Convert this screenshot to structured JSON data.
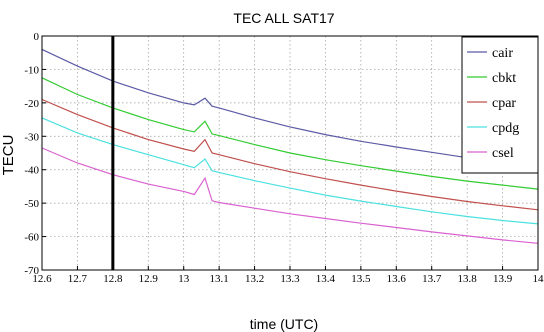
{
  "chart_data": {
    "type": "line",
    "title": "TEC ALL SAT17",
    "xlabel": "time (UTC)",
    "ylabel": "TECU",
    "xlim": [
      12.6,
      14
    ],
    "ylim": [
      -70,
      0
    ],
    "xticks": [
      "12.6",
      "12.7",
      "12.8",
      "12.9",
      "13",
      "13.1",
      "13.2",
      "13.3",
      "13.4",
      "13.5",
      "13.6",
      "13.7",
      "13.8",
      "13.9",
      "14"
    ],
    "yticks": [
      "0",
      "-10",
      "-20",
      "-30",
      "-40",
      "-50",
      "-60",
      "-70"
    ],
    "grid": true,
    "legend_position": "top-right",
    "vertical_marker_x": 12.8,
    "series": [
      {
        "name": "cair",
        "color": "#5b5ba6",
        "x": [
          12.6,
          12.7,
          12.8,
          12.9,
          13.0,
          13.03,
          13.06,
          13.08,
          13.1,
          13.2,
          13.3,
          13.4,
          13.5,
          13.6,
          13.7,
          13.8,
          13.9,
          14.0
        ],
        "y": [
          -4,
          -9,
          -13.5,
          -17,
          -20,
          -20.6,
          -18.6,
          -21,
          -21.5,
          -24.5,
          -27.2,
          -29.5,
          -31.5,
          -33.2,
          -34.8,
          -36.4,
          -37.8,
          -39.2
        ]
      },
      {
        "name": "cbkt",
        "color": "#33cc33",
        "x": [
          12.6,
          12.7,
          12.8,
          12.9,
          13.0,
          13.03,
          13.06,
          13.08,
          13.1,
          13.2,
          13.3,
          13.4,
          13.5,
          13.6,
          13.7,
          13.8,
          13.9,
          14.0
        ],
        "y": [
          -12.5,
          -17.5,
          -21.5,
          -25,
          -28,
          -28.7,
          -25.5,
          -29.3,
          -29.8,
          -32.5,
          -35,
          -37,
          -38.8,
          -40.4,
          -42,
          -43.4,
          -44.6,
          -45.8
        ]
      },
      {
        "name": "cpar",
        "color": "#c0504d",
        "x": [
          12.6,
          12.7,
          12.8,
          12.9,
          13.0,
          13.03,
          13.06,
          13.08,
          13.1,
          13.2,
          13.3,
          13.4,
          13.5,
          13.6,
          13.7,
          13.8,
          13.9,
          14.0
        ],
        "y": [
          -19,
          -23.5,
          -27.5,
          -31,
          -33.8,
          -34.5,
          -31,
          -35,
          -35.5,
          -38.2,
          -40.6,
          -42.7,
          -44.6,
          -46.4,
          -48,
          -49.5,
          -50.8,
          -52
        ]
      },
      {
        "name": "cpdg",
        "color": "#4de0e0",
        "x": [
          12.6,
          12.7,
          12.8,
          12.9,
          13.0,
          13.03,
          13.06,
          13.08,
          13.1,
          13.2,
          13.3,
          13.4,
          13.5,
          13.6,
          13.7,
          13.8,
          13.9,
          14.0
        ],
        "y": [
          -24.5,
          -29,
          -32.5,
          -35.5,
          -38.5,
          -39.4,
          -36.8,
          -40.3,
          -40.8,
          -43.3,
          -45.5,
          -47.6,
          -49.4,
          -51,
          -52.6,
          -54,
          -55.2,
          -56.2
        ]
      },
      {
        "name": "csel",
        "color": "#d962d0",
        "x": [
          12.6,
          12.7,
          12.8,
          12.9,
          13.0,
          13.03,
          13.06,
          13.08,
          13.1,
          13.2,
          13.3,
          13.4,
          13.5,
          13.6,
          13.7,
          13.8,
          13.9,
          14.0
        ],
        "y": [
          -33.5,
          -38,
          -41.5,
          -44.3,
          -46.5,
          -47.4,
          -42.5,
          -49.3,
          -49.8,
          -51.5,
          -53.2,
          -54.6,
          -56,
          -57.3,
          -58.6,
          -59.8,
          -61,
          -62
        ]
      }
    ]
  }
}
